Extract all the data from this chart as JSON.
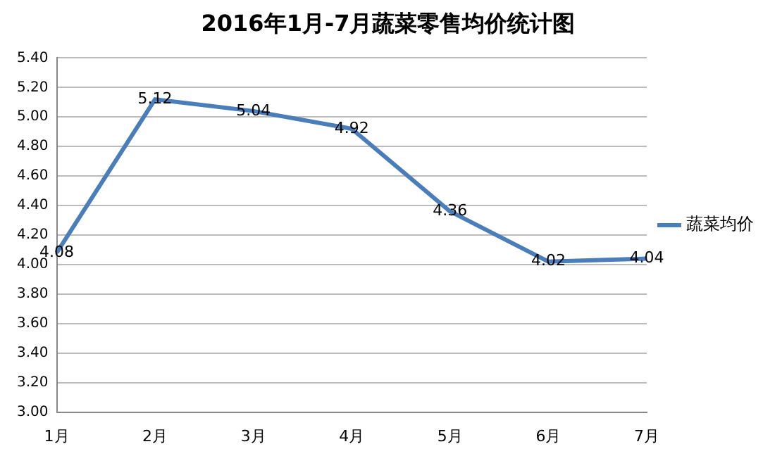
{
  "chart_data": {
    "type": "line",
    "title": "2016年1月-7月蔬菜零售均价统计图",
    "categories": [
      "1月",
      "2月",
      "3月",
      "4月",
      "5月",
      "6月",
      "7月"
    ],
    "series": [
      {
        "name": "蔬菜均价",
        "color": "#4a7ebb",
        "values": [
          4.08,
          5.12,
          5.04,
          4.92,
          4.36,
          4.02,
          4.04
        ]
      }
    ],
    "ylim": [
      3,
      5.4
    ],
    "yticks": [
      {
        "value": 3,
        "label": "3.00"
      },
      {
        "value": 3.2,
        "label": "3.20"
      },
      {
        "value": 3.4,
        "label": "3.40"
      },
      {
        "value": 3.6,
        "label": "3.60"
      },
      {
        "value": 3.8,
        "label": "3.80"
      },
      {
        "value": 4,
        "label": "4.00"
      },
      {
        "value": 4.2,
        "label": "4.20"
      },
      {
        "value": 4.4,
        "label": "4.40"
      },
      {
        "value": 4.6,
        "label": "4.60"
      },
      {
        "value": 4.8,
        "label": "4.80"
      },
      {
        "value": 5,
        "label": "5.00"
      },
      {
        "value": 5.2,
        "label": "5.20"
      },
      {
        "value": 5.4,
        "label": "5.40"
      }
    ],
    "grid": "y",
    "legend": "right",
    "marker": "none",
    "line_style": "solid",
    "data_labels": true
  }
}
